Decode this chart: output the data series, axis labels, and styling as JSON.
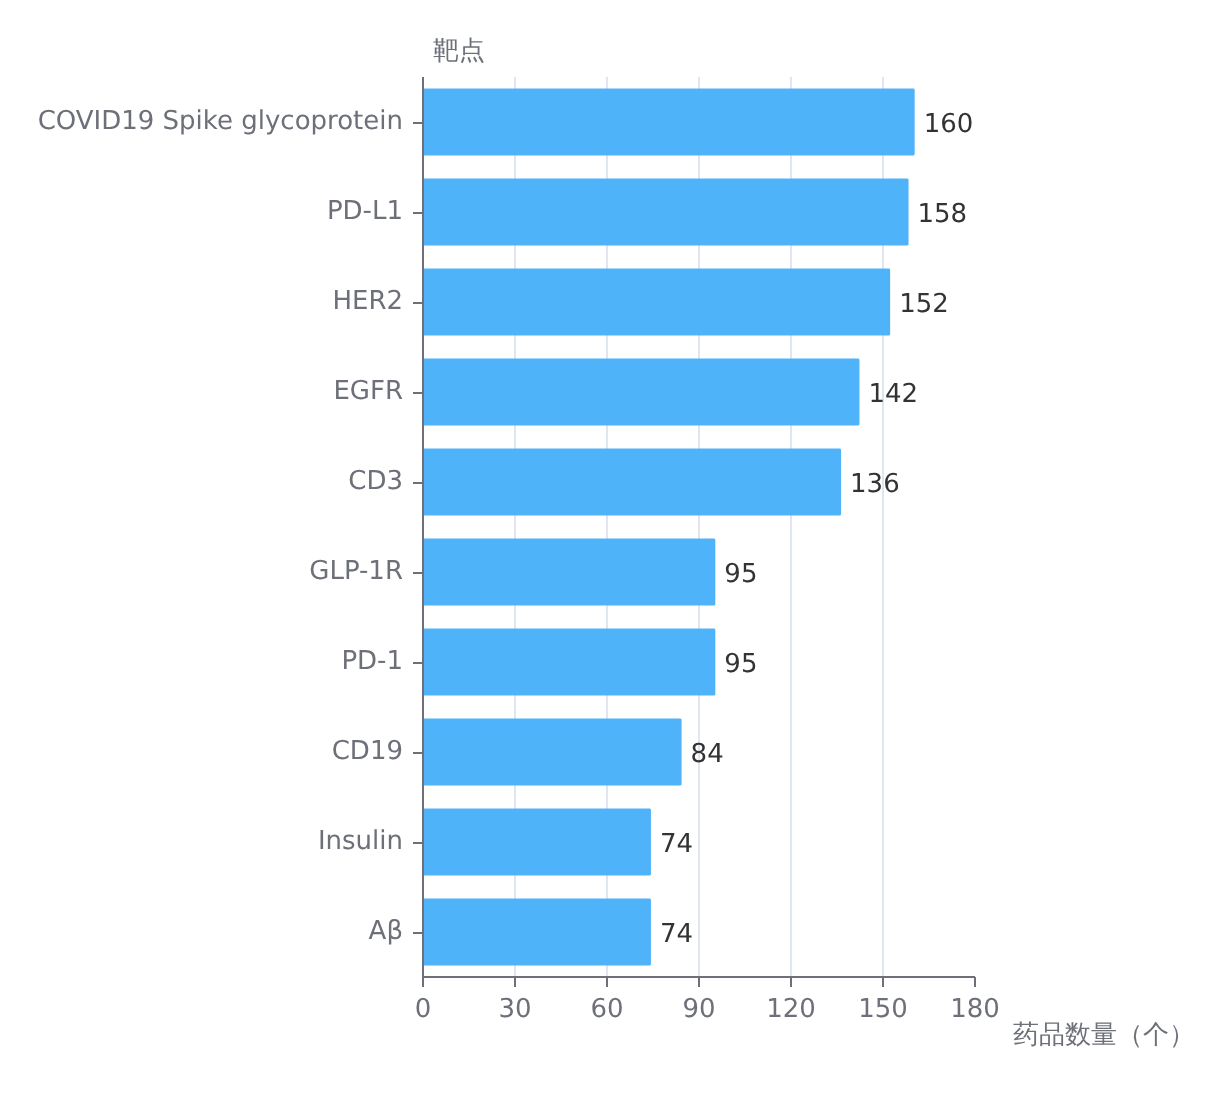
{
  "chart_data": {
    "type": "bar",
    "orientation": "horizontal",
    "xlabel": "药品数量（个）",
    "ylabel": "靶点",
    "categories": [
      "COVID19 Spike glycoprotein",
      "PD-L1",
      "HER2",
      "EGFR",
      "CD3",
      "GLP-1R",
      "PD-1",
      "CD19",
      "Insulin",
      "Aβ"
    ],
    "values": [
      160,
      158,
      152,
      142,
      136,
      95,
      95,
      84,
      74,
      74
    ],
    "color": "#4fb3fa",
    "xlim": [
      0,
      180
    ],
    "xticks": [
      0,
      30,
      60,
      90,
      120,
      150,
      180
    ],
    "grid": "x",
    "data_labels": true
  }
}
